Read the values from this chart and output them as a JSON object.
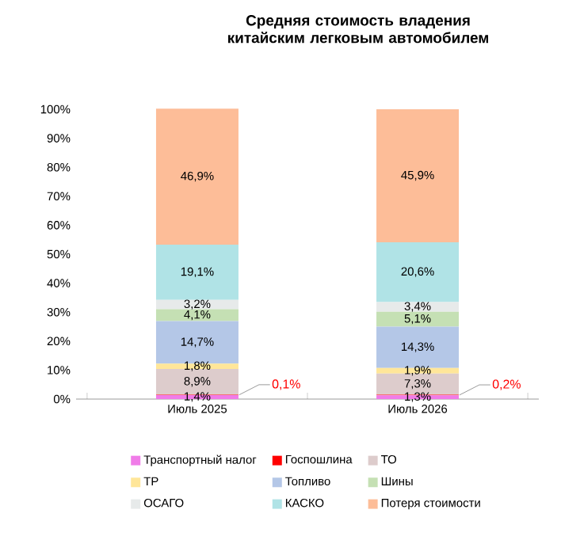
{
  "chart_data": {
    "type": "bar",
    "stacked": true,
    "title": "Средняя стоимость владения китайским легковым автомобилем",
    "categories": [
      "Июль 2025",
      "Июль 2026"
    ],
    "series": [
      {
        "name": "Транспортный налог",
        "color": "#f07ce8",
        "values": [
          1.4,
          1.3
        ],
        "value_labels": [
          "1,4%",
          "1,3%"
        ]
      },
      {
        "name": "Госпошлина",
        "color": "#ff0000",
        "values": [
          0.1,
          0.2
        ],
        "value_labels": [
          "0,1%",
          "0,2%"
        ]
      },
      {
        "name": "ТО",
        "color": "#ddcccc",
        "values": [
          8.9,
          7.3
        ],
        "value_labels": [
          "8,9%",
          "7,3%"
        ]
      },
      {
        "name": "ТР",
        "color": "#ffe699",
        "values": [
          1.8,
          1.9
        ],
        "value_labels": [
          "1,8%",
          "1,9%"
        ]
      },
      {
        "name": "Топливо",
        "color": "#b4c7e7",
        "values": [
          14.7,
          14.3
        ],
        "value_labels": [
          "14,7%",
          "14,3%"
        ]
      },
      {
        "name": "Шины",
        "color": "#c5e0b4",
        "values": [
          4.1,
          5.1
        ],
        "value_labels": [
          "4,1%",
          "5,1%"
        ]
      },
      {
        "name": "ОСАГО",
        "color": "#e7eaea",
        "values": [
          3.2,
          3.4
        ],
        "value_labels": [
          "3,2%",
          "3,4%"
        ]
      },
      {
        "name": "КАСКО",
        "color": "#b0e3e6",
        "values": [
          19.1,
          20.6
        ],
        "value_labels": [
          "19,1%",
          "20,6%"
        ]
      },
      {
        "name": "Потеря стоимости",
        "color": "#fdbd98",
        "values": [
          46.9,
          45.9
        ],
        "value_labels": [
          "46,9%",
          "45,9%"
        ]
      }
    ],
    "ylim": [
      0,
      100
    ],
    "yticks": [
      {
        "value": 0,
        "label": "0%"
      },
      {
        "value": 10,
        "label": "10%"
      },
      {
        "value": 20,
        "label": "20%"
      },
      {
        "value": 30,
        "label": "30%"
      },
      {
        "value": 40,
        "label": "40%"
      },
      {
        "value": 50,
        "label": "50%"
      },
      {
        "value": 60,
        "label": "60%"
      },
      {
        "value": 70,
        "label": "70%"
      },
      {
        "value": 80,
        "label": "80%"
      },
      {
        "value": 90,
        "label": "90%"
      },
      {
        "value": 100,
        "label": "100%"
      }
    ],
    "legend": "bottom",
    "grid": false
  }
}
